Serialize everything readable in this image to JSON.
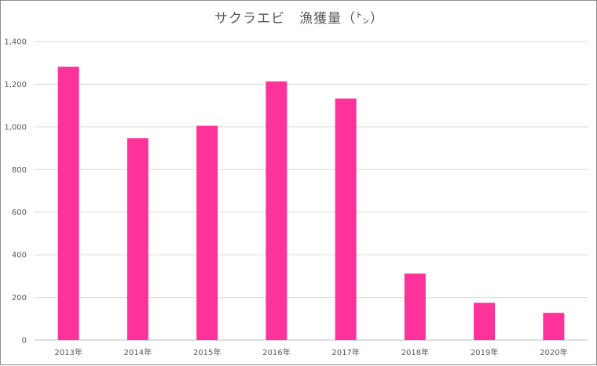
{
  "chart_data": {
    "type": "bar",
    "title": "サクラエビ　漁獲量（㌧）",
    "categories": [
      "2013年",
      "2014年",
      "2015年",
      "2016年",
      "2017年",
      "2018年",
      "2019年",
      "2020年"
    ],
    "values": [
      1282,
      947,
      1005,
      1213,
      1133,
      312,
      175,
      128
    ],
    "ylim": [
      0,
      1400
    ],
    "yticks": [
      "0",
      "200",
      "400",
      "600",
      "800",
      "1,000",
      "1,200",
      "1,400"
    ],
    "xlabel": "",
    "ylabel": "",
    "grid": true,
    "bar_color": "#ff3399"
  }
}
